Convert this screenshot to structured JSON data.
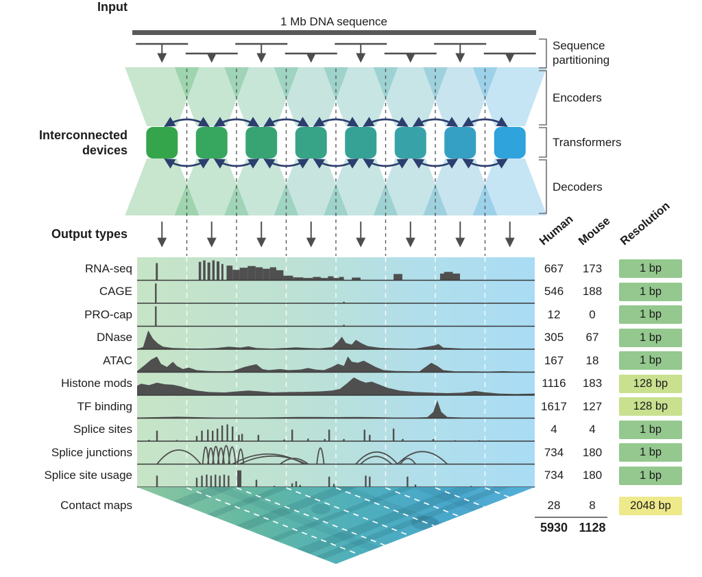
{
  "labels": {
    "input": "Input",
    "sequence": "1 Mb DNA sequence",
    "devices_line1": "Interconnected",
    "devices_line2": "devices",
    "output_types": "Output types",
    "bracket_partitioning_line1": "Sequence",
    "bracket_partitioning_line2": "partitioning",
    "bracket_encoders": "Encoders",
    "bracket_transformers": "Transformers",
    "bracket_decoders": "Decoders"
  },
  "table": {
    "header_human": "Human",
    "header_mouse": "Mouse",
    "header_resolution": "Resolution",
    "total_human": "5930",
    "total_mouse": "1128"
  },
  "tracks": [
    {
      "id": "rna_seq",
      "name": "RNA-seq",
      "human": "667",
      "mouse": "173",
      "resolution": "1 bp",
      "res": "green"
    },
    {
      "id": "cage",
      "name": "CAGE",
      "human": "546",
      "mouse": "188",
      "resolution": "1 bp",
      "res": "green"
    },
    {
      "id": "pro_cap",
      "name": "PRO-cap",
      "human": "12",
      "mouse": "0",
      "resolution": "1 bp",
      "res": "green"
    },
    {
      "id": "dnase",
      "name": "DNase",
      "human": "305",
      "mouse": "67",
      "resolution": "1 bp",
      "res": "green"
    },
    {
      "id": "atac",
      "name": "ATAC",
      "human": "167",
      "mouse": "18",
      "resolution": "1 bp",
      "res": "green"
    },
    {
      "id": "histone",
      "name": "Histone mods",
      "human": "1116",
      "mouse": "183",
      "resolution": "128 bp",
      "res": "light"
    },
    {
      "id": "tf",
      "name": "TF binding",
      "human": "1617",
      "mouse": "127",
      "resolution": "128 bp",
      "res": "light"
    },
    {
      "id": "splice_sites",
      "name": "Splice sites",
      "human": "4",
      "mouse": "4",
      "resolution": "1 bp",
      "res": "green"
    },
    {
      "id": "splice_junctions",
      "name": "Splice junctions",
      "human": "734",
      "mouse": "180",
      "resolution": "1 bp",
      "res": "green"
    },
    {
      "id": "splice_usage",
      "name": "Splice site usage",
      "human": "734",
      "mouse": "180",
      "resolution": "1 bp",
      "res": "green"
    },
    {
      "id": "contact",
      "name": "Contact maps",
      "human": "28",
      "mouse": "8",
      "resolution": "2048 bp",
      "res": "yellow"
    }
  ],
  "colors": {
    "device_colors": [
      "#35a54b",
      "#37a65e",
      "#38a474",
      "#37a387",
      "#36a296",
      "#37a3a9",
      "#369fc4",
      "#2fa3dc"
    ],
    "res_colors": {
      "green": "#94c88e",
      "light": "#c9e08f",
      "yellow": "#eee98a"
    },
    "signal": "#4f4f4f",
    "baseline": "#3a3a3a",
    "navy_arrow": "#2b3e6d",
    "gray_arrow": "#4d4d4d",
    "input_bar": "#595959",
    "track_bg_left": "#c7e4c6",
    "track_bg_right": "#a9dcf4"
  },
  "signals": {
    "rna_seq": {
      "type": "bars",
      "data": [
        [
          0.047,
          0.005,
          0.82
        ],
        [
          0.155,
          0.006,
          0.88
        ],
        [
          0.166,
          0.006,
          0.95
        ],
        [
          0.177,
          0.007,
          0.85
        ],
        [
          0.189,
          0.006,
          0.95
        ],
        [
          0.2,
          0.007,
          0.9
        ],
        [
          0.212,
          0.005,
          0.78
        ],
        [
          0.225,
          0.015,
          0.7
        ],
        [
          0.24,
          0.018,
          0.5
        ],
        [
          0.258,
          0.02,
          0.6
        ],
        [
          0.278,
          0.02,
          0.68
        ],
        [
          0.298,
          0.018,
          0.62
        ],
        [
          0.316,
          0.018,
          0.55
        ],
        [
          0.334,
          0.016,
          0.62
        ],
        [
          0.35,
          0.018,
          0.48
        ],
        [
          0.368,
          0.024,
          0.22
        ],
        [
          0.392,
          0.026,
          0.14
        ],
        [
          0.418,
          0.024,
          0.11
        ],
        [
          0.442,
          0.02,
          0.16
        ],
        [
          0.462,
          0.018,
          0.11
        ],
        [
          0.48,
          0.014,
          0.19
        ],
        [
          0.494,
          0.014,
          0.11
        ],
        [
          0.508,
          0.012,
          0.16
        ],
        [
          0.54,
          0.022,
          0.13
        ],
        [
          0.645,
          0.022,
          0.3
        ],
        [
          0.762,
          0.05,
          0.32
        ],
        [
          0.772,
          0.022,
          0.4
        ]
      ]
    },
    "cage": {
      "type": "spikes",
      "data": [
        [
          0.047,
          0.95
        ],
        [
          0.52,
          0.07
        ]
      ]
    },
    "pro_cap": {
      "type": "spikes",
      "data": [
        [
          0.047,
          0.95
        ],
        [
          0.52,
          0.07
        ]
      ]
    },
    "dnase": {
      "type": "profile",
      "data": [
        [
          0,
          0.02
        ],
        [
          0.015,
          0.1
        ],
        [
          0.028,
          0.9
        ],
        [
          0.04,
          0.5
        ],
        [
          0.052,
          0.28
        ],
        [
          0.065,
          0.12
        ],
        [
          0.09,
          0.06
        ],
        [
          0.12,
          0.04
        ],
        [
          0.16,
          0.03
        ],
        [
          0.2,
          0.06
        ],
        [
          0.23,
          0.12
        ],
        [
          0.26,
          0.08
        ],
        [
          0.28,
          0.14
        ],
        [
          0.3,
          0.06
        ],
        [
          0.34,
          0.03
        ],
        [
          0.37,
          0.06
        ],
        [
          0.4,
          0.09
        ],
        [
          0.43,
          0.06
        ],
        [
          0.46,
          0.04
        ],
        [
          0.49,
          0.1
        ],
        [
          0.505,
          0.35
        ],
        [
          0.515,
          0.6
        ],
        [
          0.525,
          0.3
        ],
        [
          0.54,
          0.22
        ],
        [
          0.55,
          0.45
        ],
        [
          0.565,
          0.28
        ],
        [
          0.58,
          0.15
        ],
        [
          0.61,
          0.07
        ],
        [
          0.65,
          0.04
        ],
        [
          0.7,
          0.03
        ],
        [
          0.748,
          0.18
        ],
        [
          0.758,
          0.25
        ],
        [
          0.77,
          0.08
        ],
        [
          0.82,
          0.03
        ],
        [
          0.88,
          0.02
        ],
        [
          0.94,
          0.02
        ],
        [
          1,
          0.02
        ]
      ]
    },
    "atac": {
      "type": "profile",
      "data": [
        [
          0,
          0.05
        ],
        [
          0.02,
          0.35
        ],
        [
          0.035,
          0.6
        ],
        [
          0.05,
          0.75
        ],
        [
          0.06,
          0.4
        ],
        [
          0.075,
          0.25
        ],
        [
          0.09,
          0.5
        ],
        [
          0.1,
          0.3
        ],
        [
          0.115,
          0.15
        ],
        [
          0.13,
          0.22
        ],
        [
          0.15,
          0.1
        ],
        [
          0.18,
          0.06
        ],
        [
          0.21,
          0.05
        ],
        [
          0.24,
          0.06
        ],
        [
          0.27,
          0.25
        ],
        [
          0.285,
          0.32
        ],
        [
          0.3,
          0.38
        ],
        [
          0.315,
          0.15
        ],
        [
          0.33,
          0.1
        ],
        [
          0.36,
          0.15
        ],
        [
          0.38,
          0.1
        ],
        [
          0.41,
          0.12
        ],
        [
          0.43,
          0.2
        ],
        [
          0.45,
          0.12
        ],
        [
          0.47,
          0.1
        ],
        [
          0.49,
          0.25
        ],
        [
          0.505,
          0.4
        ],
        [
          0.52,
          0.3
        ],
        [
          0.53,
          0.75
        ],
        [
          0.54,
          0.5
        ],
        [
          0.555,
          0.45
        ],
        [
          0.57,
          0.55
        ],
        [
          0.585,
          0.4
        ],
        [
          0.6,
          0.25
        ],
        [
          0.62,
          0.1
        ],
        [
          0.65,
          0.06
        ],
        [
          0.68,
          0.05
        ],
        [
          0.71,
          0.04
        ],
        [
          0.74,
          0.45
        ],
        [
          0.755,
          0.3
        ],
        [
          0.77,
          0.1
        ],
        [
          0.8,
          0.04
        ],
        [
          0.84,
          0.04
        ],
        [
          0.88,
          0.03
        ],
        [
          0.92,
          0.05
        ],
        [
          0.96,
          0.03
        ],
        [
          1,
          0.03
        ]
      ]
    },
    "histone": {
      "type": "profile",
      "data": [
        [
          0,
          0.45
        ],
        [
          0.01,
          0.55
        ],
        [
          0.03,
          0.48
        ],
        [
          0.05,
          0.6
        ],
        [
          0.07,
          0.52
        ],
        [
          0.09,
          0.5
        ],
        [
          0.11,
          0.42
        ],
        [
          0.13,
          0.3
        ],
        [
          0.15,
          0.22
        ],
        [
          0.18,
          0.15
        ],
        [
          0.22,
          0.13
        ],
        [
          0.25,
          0.18
        ],
        [
          0.28,
          0.22
        ],
        [
          0.31,
          0.18
        ],
        [
          0.34,
          0.13
        ],
        [
          0.38,
          0.15
        ],
        [
          0.42,
          0.16
        ],
        [
          0.46,
          0.18
        ],
        [
          0.49,
          0.22
        ],
        [
          0.51,
          0.3
        ],
        [
          0.53,
          0.6
        ],
        [
          0.545,
          0.85
        ],
        [
          0.56,
          0.7
        ],
        [
          0.575,
          0.6
        ],
        [
          0.59,
          0.65
        ],
        [
          0.61,
          0.5
        ],
        [
          0.63,
          0.35
        ],
        [
          0.66,
          0.22
        ],
        [
          0.7,
          0.15
        ],
        [
          0.74,
          0.12
        ],
        [
          0.78,
          0.1
        ],
        [
          0.82,
          0.12
        ],
        [
          0.85,
          0.2
        ],
        [
          0.875,
          0.14
        ],
        [
          0.91,
          0.08
        ],
        [
          0.95,
          0.06
        ],
        [
          1,
          0.08
        ]
      ]
    },
    "tf": {
      "type": "profile",
      "data": [
        [
          0,
          0.03
        ],
        [
          0.05,
          0.05
        ],
        [
          0.1,
          0.07
        ],
        [
          0.15,
          0.05
        ],
        [
          0.2,
          0.03
        ],
        [
          0.25,
          0.03
        ],
        [
          0.3,
          0.03
        ],
        [
          0.35,
          0.04
        ],
        [
          0.4,
          0.06
        ],
        [
          0.45,
          0.06
        ],
        [
          0.5,
          0.05
        ],
        [
          0.55,
          0.06
        ],
        [
          0.6,
          0.05
        ],
        [
          0.65,
          0.03
        ],
        [
          0.7,
          0.03
        ],
        [
          0.73,
          0.05
        ],
        [
          0.745,
          0.3
        ],
        [
          0.755,
          0.85
        ],
        [
          0.765,
          0.3
        ],
        [
          0.78,
          0.06
        ],
        [
          0.82,
          0.03
        ],
        [
          0.88,
          0.02
        ],
        [
          0.94,
          0.02
        ],
        [
          1,
          0.02
        ]
      ]
    },
    "splice_sites": {
      "type": "spikes",
      "data": [
        [
          0.03,
          0.06
        ],
        [
          0.05,
          0.5
        ],
        [
          0.1,
          0.05
        ],
        [
          0.15,
          0.25
        ],
        [
          0.163,
          0.5
        ],
        [
          0.178,
          0.55
        ],
        [
          0.19,
          0.5
        ],
        [
          0.202,
          0.6
        ],
        [
          0.214,
          0.75
        ],
        [
          0.227,
          0.8
        ],
        [
          0.24,
          0.7
        ],
        [
          0.256,
          0.3
        ],
        [
          0.264,
          0.35
        ],
        [
          0.305,
          0.3
        ],
        [
          0.37,
          0.08
        ],
        [
          0.39,
          0.55
        ],
        [
          0.43,
          0.12
        ],
        [
          0.472,
          0.1
        ],
        [
          0.483,
          0.55
        ],
        [
          0.52,
          0.1
        ],
        [
          0.572,
          0.55
        ],
        [
          0.585,
          0.3
        ],
        [
          0.645,
          0.6
        ],
        [
          0.668,
          0.1
        ],
        [
          0.745,
          0.1
        ],
        [
          0.8,
          0.04
        ],
        [
          0.86,
          0.04
        ]
      ]
    },
    "splice_junctions": {
      "type": "arcs",
      "data": [
        [
          0.05,
          0.16,
          0.7
        ],
        [
          0.165,
          0.18,
          0.85
        ],
        [
          0.178,
          0.193,
          0.8
        ],
        [
          0.19,
          0.206,
          0.88
        ],
        [
          0.203,
          0.219,
          0.8
        ],
        [
          0.215,
          0.233,
          0.92
        ],
        [
          0.23,
          0.248,
          0.85
        ],
        [
          0.253,
          0.268,
          0.75
        ],
        [
          0.24,
          0.42,
          0.5
        ],
        [
          0.258,
          0.425,
          0.4
        ],
        [
          0.36,
          0.43,
          0.28
        ],
        [
          0.452,
          0.47,
          0.8
        ],
        [
          0.55,
          0.655,
          0.6
        ],
        [
          0.562,
          0.64,
          0.38
        ],
        [
          0.655,
          0.78,
          0.62
        ],
        [
          0.662,
          0.7,
          0.28
        ]
      ]
    },
    "splice_usage": {
      "type": "spikes",
      "data": [
        [
          0.05,
          0.55
        ],
        [
          0.15,
          0.45
        ],
        [
          0.163,
          0.55
        ],
        [
          0.175,
          0.6
        ],
        [
          0.186,
          0.55
        ],
        [
          0.197,
          0.6
        ],
        [
          0.208,
          0.55
        ],
        [
          0.219,
          0.6
        ],
        [
          0.23,
          0.55
        ],
        [
          0.257,
          0.8,
          6
        ],
        [
          0.3,
          0.35
        ],
        [
          0.345,
          0.06
        ],
        [
          0.39,
          0.18
        ],
        [
          0.4,
          0.28
        ],
        [
          0.41,
          0.1
        ],
        [
          0.483,
          0.5
        ],
        [
          0.495,
          0.15
        ],
        [
          0.575,
          0.55
        ],
        [
          0.585,
          0.5
        ],
        [
          0.68,
          0.5
        ],
        [
          0.7,
          0.12
        ],
        [
          0.84,
          0.05
        ]
      ]
    },
    "contact": {
      "type": "triangle"
    }
  }
}
